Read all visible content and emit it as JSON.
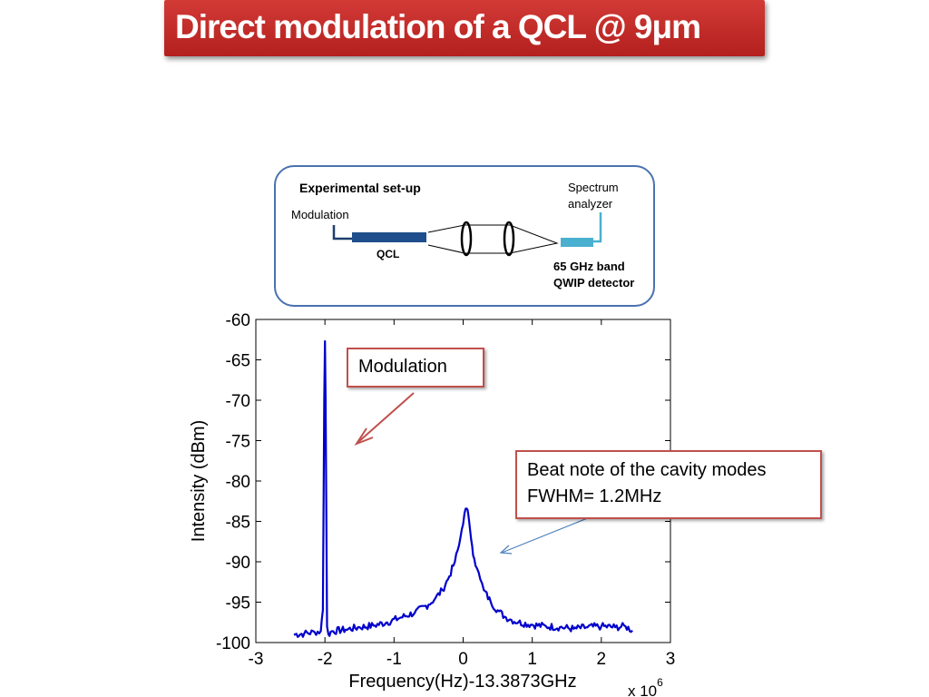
{
  "slide": {
    "title": "Direct modulation of a QCL @ 9μm"
  },
  "setup": {
    "heading": "Experimental set-up",
    "modulation_label": "Modulation",
    "qcl_label": "QCL",
    "analyzer_line1": "Spectrum",
    "analyzer_line2": "analyzer",
    "detector_line1": "65 GHz band",
    "detector_line2": "QWIP detector"
  },
  "callouts": {
    "modulation": "Modulation",
    "beat_line1": "Beat note of the cavity modes",
    "beat_line2": "FWHM= 1.2MHz"
  },
  "colors": {
    "title_bg": "#c0302c",
    "series": "#0000cc",
    "callout_border": "#c0504d",
    "panel_border": "#4a72b0"
  },
  "chart_data": {
    "type": "line",
    "xlabel": "Frequency(Hz)-13.3873GHz",
    "ylabel": "Intensity (dBm)",
    "x_multiplier": "x 10",
    "x_multiplier_exp": "6",
    "xlim": [
      -3,
      3
    ],
    "ylim": [
      -100,
      -60
    ],
    "xticks": [
      -3,
      -2,
      -1,
      0,
      1,
      2,
      3
    ],
    "yticks": [
      -60,
      -65,
      -70,
      -75,
      -80,
      -85,
      -90,
      -95,
      -100
    ],
    "grid": false,
    "series": [
      {
        "x": [
          -2.45,
          -2.3,
          -2.15,
          -2.06,
          -2.03,
          -2.01,
          -2.0,
          -1.99,
          -1.97,
          -1.95,
          -1.9,
          -1.7,
          -1.5,
          -1.3,
          -1.1,
          -0.9,
          -0.7,
          -0.5,
          -0.4,
          -0.3,
          -0.2,
          -0.12,
          -0.06,
          -0.02,
          0.02,
          0.05,
          0.08,
          0.1,
          0.13,
          0.16,
          0.2,
          0.25,
          0.3,
          0.4,
          0.5,
          0.6,
          0.7,
          0.8,
          1.0,
          1.2,
          1.4,
          1.6,
          1.8,
          2.0,
          2.2,
          2.35,
          2.45
        ],
        "y": [
          -99.0,
          -98.9,
          -98.7,
          -98.6,
          -96.0,
          -70.0,
          -62.7,
          -70.0,
          -98.0,
          -99.0,
          -98.6,
          -98.4,
          -98.1,
          -97.9,
          -97.5,
          -96.9,
          -96.3,
          -95.3,
          -94.5,
          -93.5,
          -91.8,
          -90.0,
          -88.0,
          -86.0,
          -84.0,
          -83.4,
          -84.5,
          -86.0,
          -88.0,
          -89.6,
          -90.8,
          -92.2,
          -93.5,
          -95.0,
          -96.0,
          -96.8,
          -97.2,
          -97.5,
          -97.8,
          -98.0,
          -98.1,
          -98.3,
          -98.1,
          -98.0,
          -98.1,
          -98.0,
          -98.5
        ]
      }
    ]
  }
}
